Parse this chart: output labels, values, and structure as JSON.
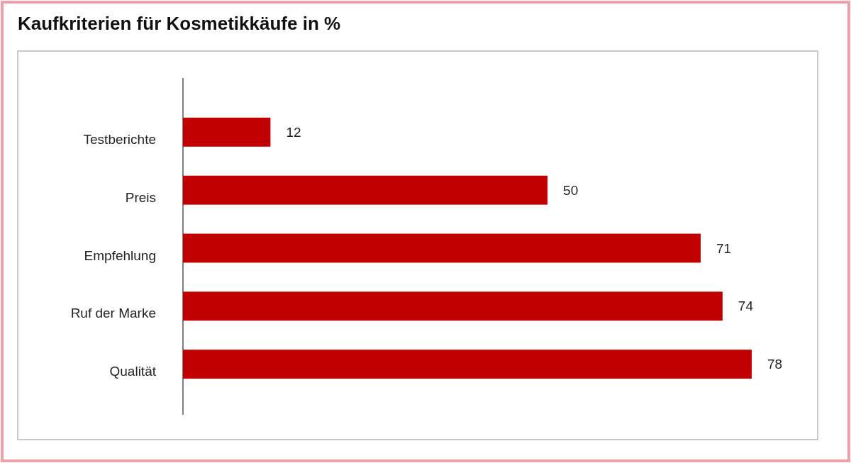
{
  "chart_data": {
    "type": "bar",
    "orientation": "horizontal",
    "title": "Kaufkriterien für Kosmetikkäufe in %",
    "categories": [
      "Testberichte",
      "Preis",
      "Empfehlung",
      "Ruf der Marke",
      "Qualität"
    ],
    "values": [
      12,
      50,
      71,
      74,
      78
    ],
    "color": "#c00000",
    "data_labels": true
  }
}
